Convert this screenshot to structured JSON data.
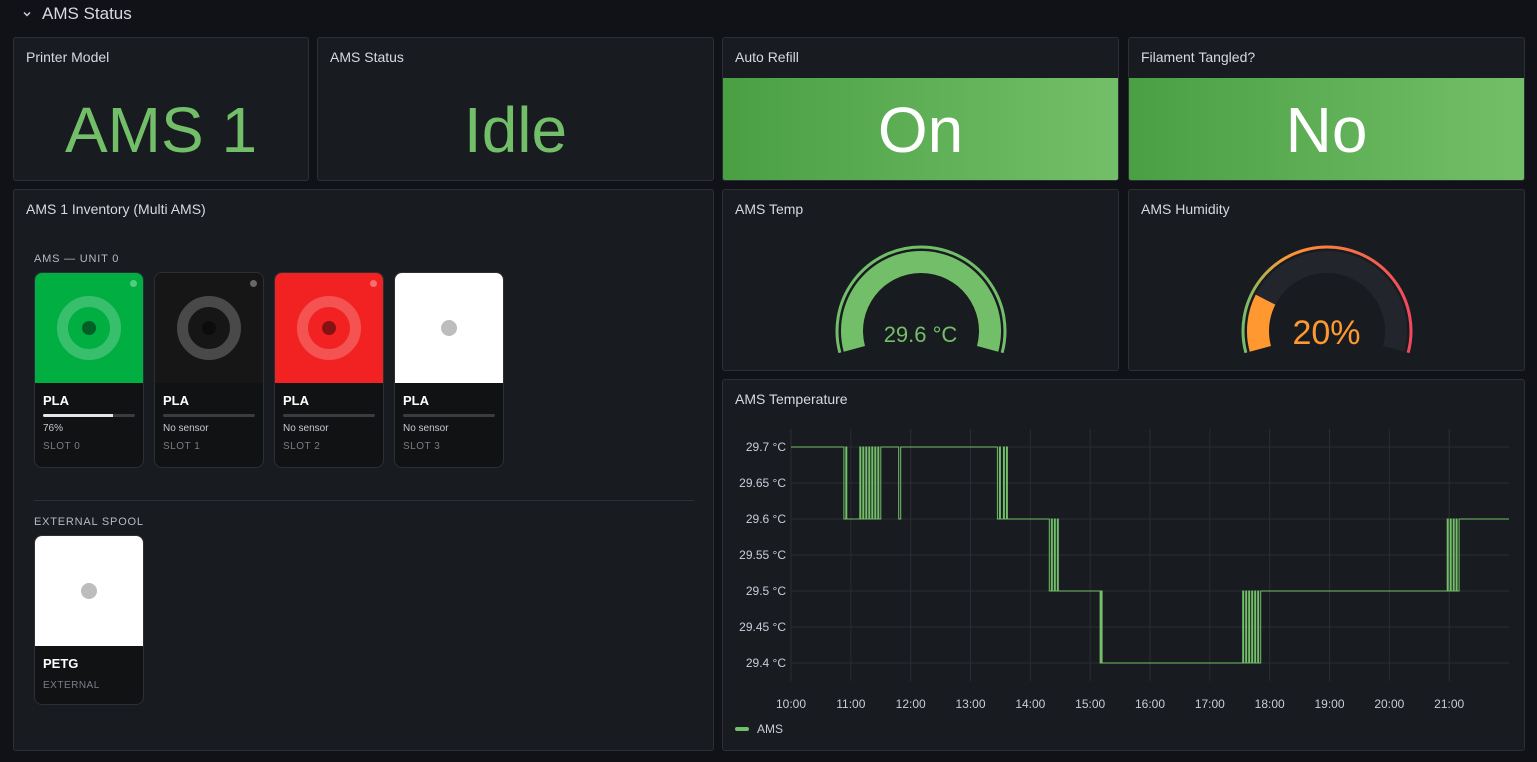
{
  "row": {
    "title": "AMS Status"
  },
  "colors": {
    "green": "#73bf69",
    "orange": "#ff9830",
    "red": "#f2495c",
    "panel_bg": "#181b1f"
  },
  "printer_model": {
    "title": "Printer Model",
    "value": "AMS 1"
  },
  "ams_status": {
    "title": "AMS Status",
    "value": "Idle"
  },
  "auto_refill": {
    "title": "Auto Refill",
    "value": "On"
  },
  "filament_tangled": {
    "title": "Filament Tangled?",
    "value": "No"
  },
  "inventory": {
    "title": "AMS 1 Inventory (Multi AMS)",
    "unit_label": "AMS — UNIT 0",
    "external_label": "EXTERNAL SPOOL",
    "slots": [
      {
        "material": "PLA",
        "status": "76%",
        "remaining": 0.76,
        "slot": "SLOT 0",
        "color": "#00ae42",
        "icon": "spool-icon"
      },
      {
        "material": "PLA",
        "status": "No sensor",
        "remaining": 0,
        "slot": "SLOT 1",
        "color": "#161616",
        "icon": "spool-icon"
      },
      {
        "material": "PLA",
        "status": "No sensor",
        "remaining": 0,
        "slot": "SLOT 2",
        "color": "#f32222",
        "icon": "spool-icon"
      },
      {
        "material": "PLA",
        "status": "No sensor",
        "remaining": 0,
        "slot": "SLOT 3",
        "color": "#ffffff",
        "icon": "empty-spool-icon"
      }
    ],
    "external": {
      "material": "PETG",
      "slot": "EXTERNAL",
      "color": "#ffffff",
      "icon": "empty-spool-icon"
    }
  },
  "ams_temp": {
    "title": "AMS Temp",
    "value": "29.6 °C",
    "fraction": 1.0
  },
  "ams_humidity": {
    "title": "AMS Humidity",
    "value": "20%",
    "fraction": 0.2
  },
  "chart_data": {
    "type": "line",
    "title": "AMS Temperature",
    "ylim": [
      29.375,
      29.725
    ],
    "yticks": [
      "29.7 °C",
      "29.65 °C",
      "29.6 °C",
      "29.55 °C",
      "29.5 °C",
      "29.45 °C",
      "29.4 °C"
    ],
    "ytick_values": [
      29.7,
      29.65,
      29.6,
      29.55,
      29.5,
      29.45,
      29.4
    ],
    "xticks": [
      "10:00",
      "11:00",
      "12:00",
      "13:00",
      "14:00",
      "15:00",
      "16:00",
      "17:00",
      "18:00",
      "19:00",
      "20:00",
      "21:00"
    ],
    "xlim": [
      "10:00",
      "22:00"
    ],
    "grid": true,
    "legend_position": "bottom-left",
    "series": [
      {
        "name": "AMS",
        "color": "#73bf69",
        "points": [
          [
            "10:00",
            29.7
          ],
          [
            "10:53",
            29.7
          ],
          [
            "10:53",
            29.6
          ],
          [
            "10:55",
            29.6
          ],
          [
            "10:55",
            29.7
          ],
          [
            "10:56",
            29.7
          ],
          [
            "10:56",
            29.6
          ],
          [
            "11:09",
            29.6
          ],
          [
            "11:09",
            29.7
          ],
          [
            "11:10",
            29.7
          ],
          [
            "11:10",
            29.6
          ],
          [
            "11:12",
            29.6
          ],
          [
            "11:12",
            29.7
          ],
          [
            "11:13",
            29.7
          ],
          [
            "11:13",
            29.6
          ],
          [
            "11:15",
            29.6
          ],
          [
            "11:15",
            29.7
          ],
          [
            "11:16",
            29.7
          ],
          [
            "11:16",
            29.6
          ],
          [
            "11:18",
            29.6
          ],
          [
            "11:18",
            29.7
          ],
          [
            "11:19",
            29.7
          ],
          [
            "11:19",
            29.6
          ],
          [
            "11:21",
            29.6
          ],
          [
            "11:21",
            29.7
          ],
          [
            "11:22",
            29.7
          ],
          [
            "11:22",
            29.6
          ],
          [
            "11:24",
            29.6
          ],
          [
            "11:24",
            29.7
          ],
          [
            "11:25",
            29.7
          ],
          [
            "11:25",
            29.6
          ],
          [
            "11:27",
            29.6
          ],
          [
            "11:27",
            29.7
          ],
          [
            "11:28",
            29.7
          ],
          [
            "11:28",
            29.6
          ],
          [
            "11:30",
            29.6
          ],
          [
            "11:30",
            29.7
          ],
          [
            "11:48",
            29.7
          ],
          [
            "11:48",
            29.6
          ],
          [
            "11:50",
            29.6
          ],
          [
            "11:50",
            29.7
          ],
          [
            "13:27",
            29.7
          ],
          [
            "13:27",
            29.6
          ],
          [
            "13:29",
            29.6
          ],
          [
            "13:29",
            29.7
          ],
          [
            "13:30",
            29.7
          ],
          [
            "13:30",
            29.6
          ],
          [
            "13:33",
            29.6
          ],
          [
            "13:33",
            29.7
          ],
          [
            "13:34",
            29.7
          ],
          [
            "13:34",
            29.6
          ],
          [
            "13:36",
            29.6
          ],
          [
            "13:36",
            29.7
          ],
          [
            "13:37",
            29.7
          ],
          [
            "13:37",
            29.6
          ],
          [
            "14:19",
            29.6
          ],
          [
            "14:19",
            29.5
          ],
          [
            "14:21",
            29.5
          ],
          [
            "14:21",
            29.6
          ],
          [
            "14:22",
            29.6
          ],
          [
            "14:22",
            29.5
          ],
          [
            "14:24",
            29.5
          ],
          [
            "14:24",
            29.6
          ],
          [
            "14:25",
            29.6
          ],
          [
            "14:25",
            29.5
          ],
          [
            "14:27",
            29.5
          ],
          [
            "14:27",
            29.6
          ],
          [
            "14:28",
            29.6
          ],
          [
            "14:28",
            29.5
          ],
          [
            "15:10",
            29.5
          ],
          [
            "15:10",
            29.4
          ],
          [
            "15:11",
            29.4
          ],
          [
            "15:11",
            29.5
          ],
          [
            "15:12",
            29.5
          ],
          [
            "15:12",
            29.4
          ],
          [
            "17:33",
            29.4
          ],
          [
            "17:33",
            29.5
          ],
          [
            "17:34",
            29.5
          ],
          [
            "17:34",
            29.4
          ],
          [
            "17:36",
            29.4
          ],
          [
            "17:36",
            29.5
          ],
          [
            "17:37",
            29.5
          ],
          [
            "17:37",
            29.4
          ],
          [
            "17:39",
            29.4
          ],
          [
            "17:39",
            29.5
          ],
          [
            "17:40",
            29.5
          ],
          [
            "17:40",
            29.4
          ],
          [
            "17:42",
            29.4
          ],
          [
            "17:42",
            29.5
          ],
          [
            "17:43",
            29.5
          ],
          [
            "17:43",
            29.4
          ],
          [
            "17:45",
            29.4
          ],
          [
            "17:45",
            29.5
          ],
          [
            "17:46",
            29.5
          ],
          [
            "17:46",
            29.4
          ],
          [
            "17:48",
            29.4
          ],
          [
            "17:48",
            29.5
          ],
          [
            "17:49",
            29.5
          ],
          [
            "17:49",
            29.4
          ],
          [
            "17:51",
            29.4
          ],
          [
            "17:51",
            29.5
          ],
          [
            "20:58",
            29.5
          ],
          [
            "20:58",
            29.6
          ],
          [
            "20:59",
            29.6
          ],
          [
            "20:59",
            29.5
          ],
          [
            "21:01",
            29.5
          ],
          [
            "21:01",
            29.6
          ],
          [
            "21:02",
            29.6
          ],
          [
            "21:02",
            29.5
          ],
          [
            "21:04",
            29.5
          ],
          [
            "21:04",
            29.6
          ],
          [
            "21:05",
            29.6
          ],
          [
            "21:05",
            29.5
          ],
          [
            "21:07",
            29.5
          ],
          [
            "21:07",
            29.6
          ],
          [
            "21:08",
            29.6
          ],
          [
            "21:08",
            29.5
          ],
          [
            "21:10",
            29.5
          ],
          [
            "21:10",
            29.6
          ],
          [
            "22:00",
            29.6
          ]
        ]
      }
    ]
  }
}
